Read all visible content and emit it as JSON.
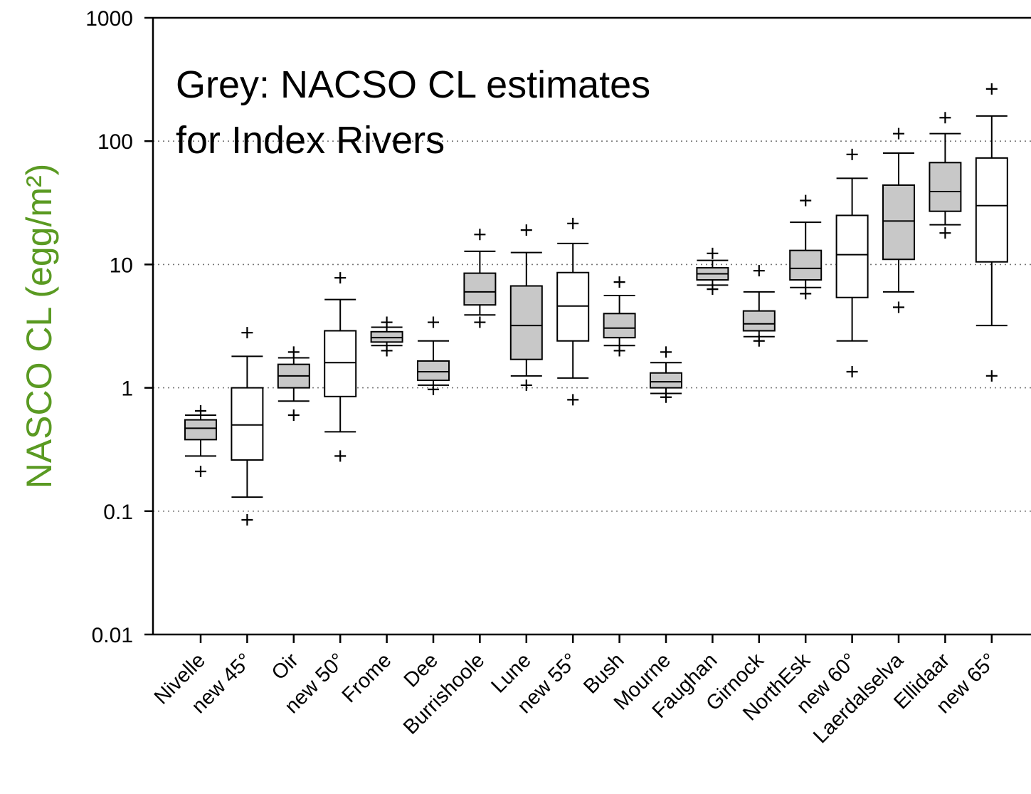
{
  "chart_data": {
    "type": "box",
    "ylabel": "NASCO CL (egg/m²)",
    "ylabel_color": "#5a9a22",
    "yscale": "log",
    "ylim": [
      0.01,
      1000
    ],
    "yticks": [
      {
        "value": 1000,
        "label": "1000"
      },
      {
        "value": 100,
        "label": "100"
      },
      {
        "value": 10,
        "label": "10"
      },
      {
        "value": 1,
        "label": "1"
      },
      {
        "value": 0.1,
        "label": "0.1"
      },
      {
        "value": 0.01,
        "label": "0.01"
      }
    ],
    "gridlines": [
      0.1,
      1,
      10,
      100
    ],
    "annotation": [
      "Grey: NACSO CL estimates",
      "for Index Rivers"
    ],
    "legend_fill": {
      "index_river": "#c8c8c8",
      "new": "#ffffff"
    },
    "categories": [
      "Nivelle",
      "new 45°",
      "Oir",
      "new 50°",
      "Frome",
      "Dee",
      "Burrishoole",
      "Lune",
      "new 55°",
      "Bush",
      "Mourne",
      "Faughan",
      "Girnock",
      "NorthEsk",
      "new 60°",
      "Laerdalselva",
      "Ellidaar",
      "new 65°"
    ],
    "boxes": [
      {
        "name": "Nivelle",
        "grey": true,
        "whisker_low": 0.28,
        "q1": 0.38,
        "median": 0.47,
        "q3": 0.55,
        "whisker_high": 0.6,
        "outliers": [
          0.21,
          0.65
        ]
      },
      {
        "name": "new 45°",
        "grey": false,
        "whisker_low": 0.13,
        "q1": 0.26,
        "median": 0.5,
        "q3": 1.0,
        "whisker_high": 1.8,
        "outliers": [
          0.085,
          2.8
        ]
      },
      {
        "name": "Oir",
        "grey": true,
        "whisker_low": 0.78,
        "q1": 1.0,
        "median": 1.25,
        "q3": 1.55,
        "whisker_high": 1.75,
        "outliers": [
          0.6,
          1.95
        ]
      },
      {
        "name": "new 50°",
        "grey": false,
        "whisker_low": 0.44,
        "q1": 0.85,
        "median": 1.6,
        "q3": 2.9,
        "whisker_high": 5.2,
        "outliers": [
          0.28,
          7.8
        ]
      },
      {
        "name": "Frome",
        "grey": true,
        "whisker_low": 2.2,
        "q1": 2.35,
        "median": 2.55,
        "q3": 2.85,
        "whisker_high": 3.1,
        "outliers": [
          2.0,
          3.4
        ]
      },
      {
        "name": "Dee",
        "grey": true,
        "whisker_low": 1.05,
        "q1": 1.15,
        "median": 1.35,
        "q3": 1.65,
        "whisker_high": 2.4,
        "outliers": [
          0.97,
          3.4
        ]
      },
      {
        "name": "Burrishoole",
        "grey": true,
        "whisker_low": 3.9,
        "q1": 4.7,
        "median": 6.0,
        "q3": 8.5,
        "whisker_high": 12.8,
        "outliers": [
          3.4,
          17.5
        ]
      },
      {
        "name": "Lune",
        "grey": true,
        "whisker_low": 1.25,
        "q1": 1.7,
        "median": 3.2,
        "q3": 6.7,
        "whisker_high": 12.5,
        "outliers": [
          1.05,
          19.0
        ]
      },
      {
        "name": "new 55°",
        "grey": false,
        "whisker_low": 1.2,
        "q1": 2.4,
        "median": 4.6,
        "q3": 8.6,
        "whisker_high": 14.8,
        "outliers": [
          0.8,
          21.5
        ]
      },
      {
        "name": "Bush",
        "grey": true,
        "whisker_low": 2.2,
        "q1": 2.55,
        "median": 3.05,
        "q3": 4.0,
        "whisker_high": 5.6,
        "outliers": [
          2.0,
          7.2
        ]
      },
      {
        "name": "Mourne",
        "grey": true,
        "whisker_low": 0.9,
        "q1": 1.0,
        "median": 1.12,
        "q3": 1.32,
        "whisker_high": 1.6,
        "outliers": [
          0.84,
          1.95
        ]
      },
      {
        "name": "Faughan",
        "grey": true,
        "whisker_low": 6.8,
        "q1": 7.5,
        "median": 8.4,
        "q3": 9.4,
        "whisker_high": 10.8,
        "outliers": [
          6.3,
          12.3
        ]
      },
      {
        "name": "Girnock",
        "grey": true,
        "whisker_low": 2.6,
        "q1": 2.9,
        "median": 3.3,
        "q3": 4.2,
        "whisker_high": 6.0,
        "outliers": [
          2.4,
          8.9
        ]
      },
      {
        "name": "NorthEsk",
        "grey": true,
        "whisker_low": 6.5,
        "q1": 7.5,
        "median": 9.3,
        "q3": 13.0,
        "whisker_high": 22.0,
        "outliers": [
          5.8,
          33.0
        ]
      },
      {
        "name": "new 60°",
        "grey": false,
        "whisker_low": 2.4,
        "q1": 5.4,
        "median": 12.0,
        "q3": 25.0,
        "whisker_high": 50.0,
        "outliers": [
          1.35,
          78.0
        ]
      },
      {
        "name": "Laerdalselva",
        "grey": true,
        "whisker_low": 6.0,
        "q1": 11.0,
        "median": 22.5,
        "q3": 44.0,
        "whisker_high": 80.0,
        "outliers": [
          4.5,
          115.0
        ]
      },
      {
        "name": "Ellidaar",
        "grey": true,
        "whisker_low": 21.0,
        "q1": 27.0,
        "median": 39.0,
        "q3": 67.0,
        "whisker_high": 115.0,
        "outliers": [
          18.0,
          155.0
        ]
      },
      {
        "name": "new 65°",
        "grey": false,
        "whisker_low": 3.2,
        "q1": 10.5,
        "median": 30.0,
        "q3": 73.0,
        "whisker_high": 160.0,
        "outliers": [
          1.25,
          265.0
        ]
      }
    ]
  }
}
